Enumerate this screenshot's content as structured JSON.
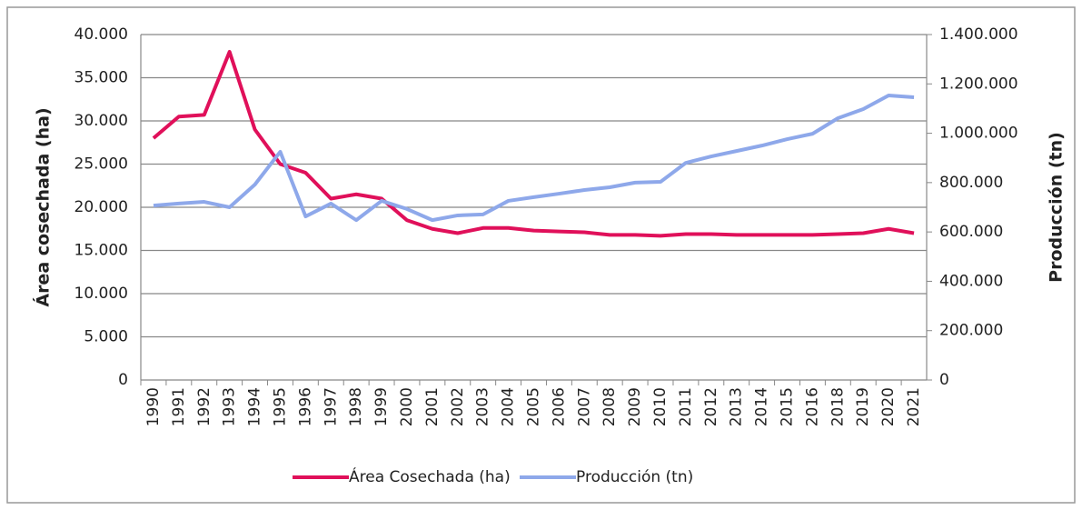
{
  "chart_data": {
    "type": "line",
    "categories": [
      "1990",
      "1991",
      "1992",
      "1993",
      "1994",
      "1995",
      "1996",
      "1997",
      "1998",
      "1999",
      "2000",
      "2001",
      "2002",
      "2003",
      "2004",
      "2005",
      "2006",
      "2007",
      "2008",
      "2009",
      "2010",
      "2011",
      "2012",
      "2013",
      "2014",
      "2015",
      "2016",
      "2018",
      "2019",
      "2020",
      "2021"
    ],
    "y_label": "Área cosechada (ha)",
    "y2_label": "Producción (tn)",
    "ylim": [
      0,
      40000
    ],
    "yticks": [
      0,
      {
        "value": 5000,
        "label": "5.000"
      },
      {
        "value": 10000,
        "label": "10.000"
      },
      {
        "value": 15000,
        "label": "15.000"
      },
      {
        "value": 20000,
        "label": "20.000"
      },
      {
        "value": 25000,
        "label": "25.000"
      },
      {
        "value": 30000,
        "label": "30.000"
      },
      {
        "value": 35000,
        "label": "35.000"
      },
      {
        "value": 40000,
        "label": "40.000"
      }
    ],
    "y2lim": [
      0,
      1400000
    ],
    "y2ticks": [
      0,
      {
        "value": 200000,
        "label": "200.000"
      },
      {
        "value": 400000,
        "label": "400.000"
      },
      {
        "value": 600000,
        "label": "600.000"
      },
      {
        "value": 800000,
        "label": "800.000"
      },
      {
        "value": 1000000,
        "label": "1.000.000"
      },
      {
        "value": 1200000,
        "label": "1.200.000"
      },
      {
        "value": 1400000,
        "label": "1.400.000"
      }
    ],
    "grid": true,
    "legend": "bottom",
    "series": [
      {
        "name": "Área Cosechada (ha)",
        "color": "#e0105a",
        "values": [
          28000,
          30500,
          30700,
          38000,
          29000,
          25000,
          24000,
          21000,
          21500,
          21000,
          18500,
          17500,
          17000,
          17600,
          17600,
          17300,
          17200,
          17100,
          16800,
          16800,
          16700,
          16900,
          16900,
          16800,
          16800,
          16800,
          16800,
          16900,
          17000,
          17500,
          17000
        ]
      },
      {
        "name": "Producción (tn)",
        "color": "#8ea8ea",
        "axis": "y2",
        "values": [
          707000,
          715000,
          722000,
          700000,
          792000,
          925000,
          663000,
          715000,
          648000,
          726000,
          693000,
          648000,
          667000,
          671000,
          726000,
          741000,
          755000,
          770000,
          781000,
          800000,
          803000,
          880000,
          906000,
          928000,
          950000,
          976000,
          998000,
          1061000,
          1098000,
          1153000,
          1146000
        ]
      }
    ]
  }
}
